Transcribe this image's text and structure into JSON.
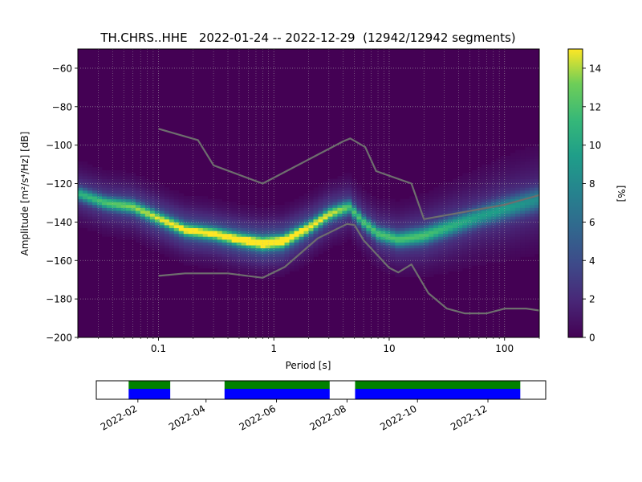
{
  "chart_data": [
    {
      "type": "heatmap",
      "title": "TH.CHRS..HHE   2022-01-24 -- 2022-12-29  (12942/12942 segments)",
      "xlabel": "Period [s]",
      "ylabel": "Amplitude [m²/s⁴/Hz] [dB]",
      "x_scale": "log",
      "xlim": [
        0.02,
        200
      ],
      "ylim": [
        -200,
        -50
      ],
      "x_ticks": [
        0.1,
        1,
        10,
        100
      ],
      "x_tick_labels": [
        "0.1",
        "1",
        "10",
        "100"
      ],
      "y_ticks": [
        -200,
        -180,
        -160,
        -140,
        -120,
        -100,
        -80,
        -60
      ],
      "y_tick_labels": [
        "−200",
        "−180",
        "−160",
        "−140",
        "−120",
        "−100",
        "−80",
        "−60"
      ],
      "grid": true,
      "colormap": "viridis",
      "colorbar": {
        "label": "[%]",
        "range": [
          0,
          15
        ],
        "ticks": [
          0,
          2,
          4,
          6,
          8,
          10,
          12,
          14
        ],
        "tick_labels": [
          "0",
          "2",
          "4",
          "6",
          "8",
          "10",
          "12",
          "14"
        ]
      },
      "density_ridge": {
        "period": [
          0.02,
          0.035,
          0.06,
          0.1,
          0.17,
          0.3,
          0.5,
          0.8,
          1.2,
          2.0,
          3.0,
          4.0,
          4.5,
          6.0,
          8.0,
          12,
          20,
          35,
          60,
          100,
          200
        ],
        "amplitude_db": [
          -125,
          -130,
          -132,
          -138,
          -144,
          -146,
          -149,
          -151,
          -150,
          -143,
          -136,
          -133,
          -132,
          -140,
          -146,
          -149,
          -147,
          -142,
          -137,
          -133,
          -128
        ],
        "peak_percent": [
          8,
          9,
          10,
          11,
          12,
          12,
          13,
          14,
          14,
          12,
          11,
          10,
          9,
          9,
          9,
          9,
          9,
          8,
          7,
          7,
          6
        ]
      },
      "series": [
        {
          "period": [
            0.1,
            0.22,
            0.3,
            0.8,
            4.0,
            4.6,
            6.2,
            7.7,
            15.6,
            20,
            100,
            200
          ],
          "amplitude_db": [
            -91.5,
            -97.4,
            -110.5,
            -120,
            -98,
            -96.5,
            -101,
            -113.5,
            -120,
            -138.5,
            -131,
            -126
          ]
        },
        {
          "period": [
            0.1,
            0.17,
            0.4,
            0.8,
            1.24,
            2.4,
            4.3,
            5.0,
            6.0,
            10,
            12,
            15.6,
            21.9,
            31.6,
            45,
            70,
            101,
            154,
            200
          ],
          "amplitude_db": [
            -168,
            -166.7,
            -166.7,
            -169,
            -163.4,
            -148.5,
            -141,
            -141.5,
            -149.5,
            -163.8,
            -166.2,
            -162,
            -177,
            -185,
            -187.5,
            -187.5,
            -185,
            -185,
            -186
          ]
        }
      ]
    },
    {
      "type": "timeline",
      "x_range": [
        "2021-12-27",
        "2023-01-20"
      ],
      "x_ticks": [
        "2022-02-01",
        "2022-04-01",
        "2022-06-01",
        "2022-08-01",
        "2022-10-01",
        "2022-12-01"
      ],
      "x_tick_labels": [
        "2022-02",
        "2022-04",
        "2022-06",
        "2022-08",
        "2022-10",
        "2022-12"
      ],
      "available_segments": [
        [
          "2022-01-24",
          "2022-03-01"
        ],
        [
          "2022-04-17",
          "2022-07-17"
        ],
        [
          "2022-08-08",
          "2022-12-29"
        ]
      ],
      "colors": {
        "psd": "#008000",
        "data": "#0000ff"
      }
    }
  ]
}
